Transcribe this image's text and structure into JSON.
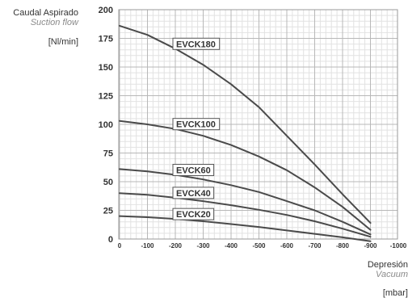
{
  "chart_data": {
    "type": "line",
    "ylabel": "Caudal Aspirado",
    "ylabel_sub": "Suction flow",
    "yunit": "[Nl/min]",
    "xlabel": "Depresión",
    "xlabel_sub": "Vacuum",
    "xunit": "[mbar]",
    "xlim": [
      0,
      -1000
    ],
    "ylim": [
      0,
      200
    ],
    "x_ticks": [
      "0",
      "-100",
      "-200",
      "-300",
      "-400",
      "-500",
      "-600",
      "-700",
      "-800",
      "-900",
      "-1000"
    ],
    "y_ticks": [
      "0",
      "25",
      "50",
      "75",
      "100",
      "125",
      "150",
      "175",
      "200"
    ],
    "grid": true,
    "series": [
      {
        "name": "EVCK180",
        "x": [
          0,
          -100,
          -200,
          -300,
          -400,
          -500,
          -600,
          -700,
          -800,
          -900
        ],
        "values": [
          186,
          178,
          166,
          152,
          135,
          115,
          90,
          65,
          39,
          14
        ]
      },
      {
        "name": "EVCK100",
        "x": [
          0,
          -100,
          -200,
          -300,
          -400,
          -500,
          -600,
          -700,
          -800,
          -900
        ],
        "values": [
          103,
          100,
          96,
          90,
          82,
          72,
          60,
          45,
          28,
          8
        ]
      },
      {
        "name": "EVCK60",
        "x": [
          0,
          -100,
          -200,
          -300,
          -400,
          -500,
          -600,
          -700,
          -800,
          -900
        ],
        "values": [
          61,
          59,
          56,
          52,
          47,
          41,
          33,
          25,
          15,
          4
        ]
      },
      {
        "name": "EVCK40",
        "x": [
          0,
          -100,
          -200,
          -300,
          -400,
          -500,
          -600,
          -700,
          -800,
          -900
        ],
        "values": [
          40,
          38.5,
          36,
          33,
          29.5,
          25.5,
          21,
          15.5,
          9,
          2
        ]
      },
      {
        "name": "EVCK20",
        "x": [
          0,
          -100,
          -200,
          -300,
          -400,
          -500,
          -600,
          -700,
          -800,
          -900
        ],
        "values": [
          20,
          19,
          17.5,
          15.5,
          13,
          10.5,
          7.5,
          4.5,
          1.5,
          -2
        ]
      }
    ]
  }
}
